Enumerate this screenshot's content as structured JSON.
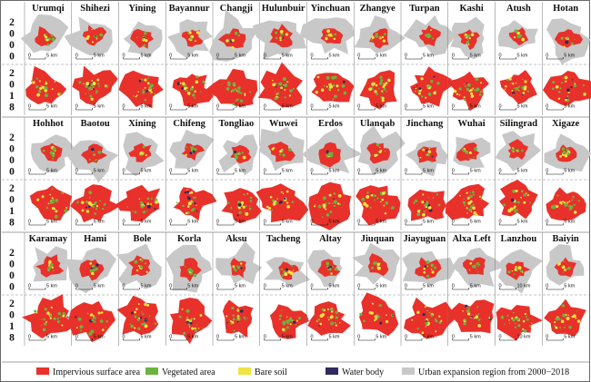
{
  "years": [
    "2000",
    "2018"
  ],
  "groups": [
    {
      "cities": [
        {
          "name": "Urumqi",
          "scale_2000": "5 km",
          "scale_2018": "5 km"
        },
        {
          "name": "Shihezi",
          "scale_2000": "5 km",
          "scale_2018": "5 km"
        },
        {
          "name": "Yining",
          "scale_2000": "5 km",
          "scale_2018": "5 km"
        },
        {
          "name": "Bayannur",
          "scale_2000": "5 km",
          "scale_2018": "5 km"
        },
        {
          "name": "Changji",
          "scale_2000": "5 km",
          "scale_2018": "5 km"
        },
        {
          "name": "Hulunbuir",
          "scale_2000": "5 km",
          "scale_2018": "5 km"
        },
        {
          "name": "Yinchuan",
          "scale_2000": "5 km",
          "scale_2018": "5 km"
        },
        {
          "name": "Zhangye",
          "scale_2000": "5 km",
          "scale_2018": "5 km"
        },
        {
          "name": "Turpan",
          "scale_2000": "5 km",
          "scale_2018": "5 km"
        },
        {
          "name": "Kashi",
          "scale_2000": "5 km",
          "scale_2018": "5 km"
        },
        {
          "name": "Atush",
          "scale_2000": "5 km",
          "scale_2018": "5 km"
        },
        {
          "name": "Hotan",
          "scale_2000": "5 km",
          "scale_2018": "5 km"
        }
      ]
    },
    {
      "cities": [
        {
          "name": "Hohhot",
          "scale_2000": "5 km",
          "scale_2018": "5 km"
        },
        {
          "name": "Baotou",
          "scale_2000": "5 km",
          "scale_2018": "5 km"
        },
        {
          "name": "Xining",
          "scale_2000": "5 km",
          "scale_2018": "5 km"
        },
        {
          "name": "Chifeng",
          "scale_2000": "5 km",
          "scale_2018": "5 km"
        },
        {
          "name": "Tongliao",
          "scale_2000": "5 km",
          "scale_2018": "5 km"
        },
        {
          "name": "Wuwei",
          "scale_2000": "5 km",
          "scale_2018": "5 km"
        },
        {
          "name": "Erdos",
          "scale_2000": "5 km",
          "scale_2018": "5 km"
        },
        {
          "name": "Ulanqab",
          "scale_2000": "5 km",
          "scale_2018": "5 km"
        },
        {
          "name": "Jinchang",
          "scale_2000": "5 km",
          "scale_2018": "5 km"
        },
        {
          "name": "Wuhai",
          "scale_2000": "5 km",
          "scale_2018": "5 km"
        },
        {
          "name": "Silingrad",
          "scale_2000": "5 km",
          "scale_2018": "5 km"
        },
        {
          "name": "Xigaze",
          "scale_2000": "5 km",
          "scale_2018": "5 km"
        }
      ]
    },
    {
      "cities": [
        {
          "name": "Karamay",
          "scale_2000": "5 km",
          "scale_2018": "5 km"
        },
        {
          "name": "Hami",
          "scale_2000": "5 km",
          "scale_2018": "5 km"
        },
        {
          "name": "Bole",
          "scale_2000": "5 km",
          "scale_2018": "5 km"
        },
        {
          "name": "Korla",
          "scale_2000": "5 km",
          "scale_2018": "5 km"
        },
        {
          "name": "Aksu",
          "scale_2000": "5 km",
          "scale_2018": "5 km"
        },
        {
          "name": "Tacheng",
          "scale_2000": "5 km",
          "scale_2018": "5 km"
        },
        {
          "name": "Altay",
          "scale_2000": "5 km",
          "scale_2018": "5 km"
        },
        {
          "name": "Jiuquan",
          "scale_2000": "5 km",
          "scale_2018": "5 km"
        },
        {
          "name": "Jiayuguan",
          "scale_2000": "5 km",
          "scale_2018": "5 km"
        },
        {
          "name": "Alxa Left",
          "scale_2000": "5 km",
          "scale_2018": "5 km"
        },
        {
          "name": "Lanzhou",
          "scale_2000": "10 km",
          "scale_2018": "10 km"
        },
        {
          "name": "Baiyin",
          "scale_2000": "5 km",
          "scale_2018": "5 km"
        }
      ]
    }
  ],
  "legend": [
    {
      "label": "Impervious surface area",
      "color": "#e8312a"
    },
    {
      "label": "Vegetated area",
      "color": "#6cb33f"
    },
    {
      "label": "Bare soil",
      "color": "#f0e442"
    },
    {
      "label": "Water body",
      "color": "#2e2b5f"
    },
    {
      "label": "Urban expansion region from 2000−2018",
      "color": "#c8c8c8"
    }
  ],
  "colors": {
    "impervious": "#e8312a",
    "vegetated": "#6cb33f",
    "bare": "#f0e442",
    "water": "#2e2b5f",
    "expansion": "#c8c8c8",
    "frame": "#444444"
  }
}
